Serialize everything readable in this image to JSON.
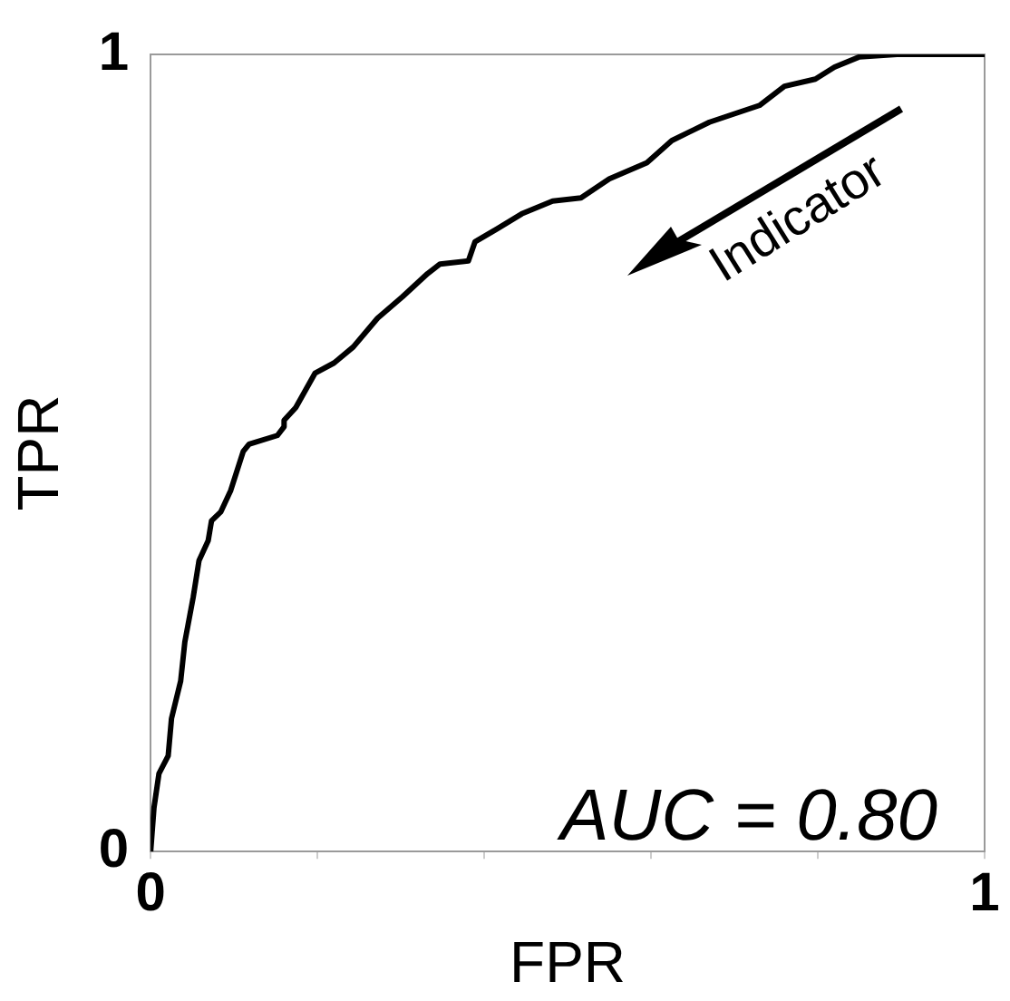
{
  "chart_data": {
    "type": "line",
    "xlabel": "FPR",
    "ylabel": "TPR",
    "color": "#000000",
    "marker": "none",
    "grid": false,
    "legend": false,
    "x": [
      0,
      0.004,
      0.01,
      0.021,
      0.025,
      0.036,
      0.041,
      0.051,
      0.058,
      0.069,
      0.073,
      0.084,
      0.096,
      0.111,
      0.118,
      0.152,
      0.16,
      0.16,
      0.174,
      0.197,
      0.22,
      0.243,
      0.272,
      0.302,
      0.332,
      0.347,
      0.381,
      0.389,
      0.415,
      0.445,
      0.482,
      0.516,
      0.55,
      0.595,
      0.625,
      0.67,
      0.73,
      0.76,
      0.797,
      0.82,
      0.85,
      0.895,
      1
    ],
    "values": [
      0,
      0.055,
      0.098,
      0.12,
      0.167,
      0.214,
      0.263,
      0.319,
      0.365,
      0.39,
      0.415,
      0.426,
      0.453,
      0.502,
      0.511,
      0.522,
      0.533,
      0.541,
      0.557,
      0.6,
      0.613,
      0.633,
      0.669,
      0.696,
      0.725,
      0.737,
      0.741,
      0.765,
      0.781,
      0.8,
      0.816,
      0.82,
      0.844,
      0.864,
      0.892,
      0.915,
      0.936,
      0.96,
      0.969,
      0.984,
      0.997,
      1,
      1
    ],
    "xlim": [
      0,
      1
    ],
    "ylim": [
      0,
      1
    ],
    "xticks": [
      0,
      {
        "value": 0.2,
        "label": null
      },
      {
        "value": 0.4,
        "label": null
      },
      {
        "value": 0.6,
        "label": null
      },
      {
        "value": 0.8,
        "label": null
      },
      1
    ],
    "yticks": [
      0,
      1
    ],
    "annotations": [
      "Indicator",
      "AUC = 0.80"
    ]
  }
}
